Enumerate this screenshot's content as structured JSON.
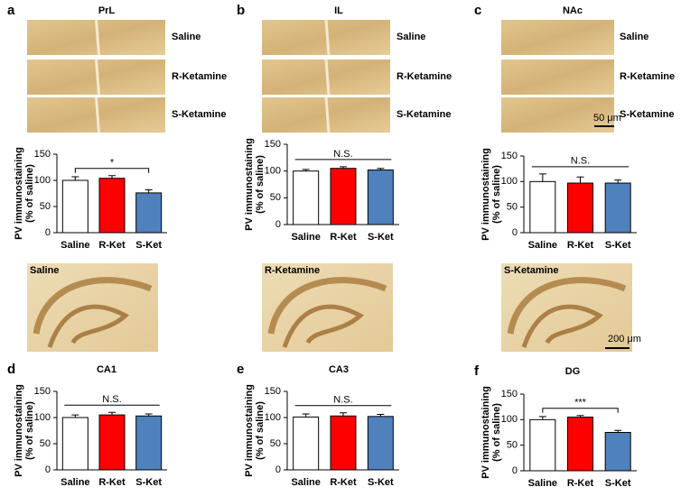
{
  "image_labels": [
    "Saline",
    "R-Ketamine",
    "S-Ketamine"
  ],
  "scale_bars": [
    "50 μm",
    "200 μm"
  ],
  "chart_data": [
    {
      "type": "bar",
      "panel": "a",
      "title": "PrL",
      "ylabel": [
        "PV  immunostaining",
        "(% of saline)"
      ],
      "categories": [
        "Saline",
        "R-Ket",
        "S-Ket"
      ],
      "values": [
        100,
        104,
        76
      ],
      "errors": [
        7,
        5,
        6
      ],
      "colors": [
        "#ffffff",
        "#ff0000",
        "#4f81bd"
      ],
      "significance": "*",
      "ylim": [
        0,
        150
      ],
      "yticks": [
        0,
        50,
        100,
        150
      ]
    },
    {
      "type": "bar",
      "panel": "b",
      "title": "IL",
      "ylabel": [
        "PV  immunostaining",
        "(% of saline)"
      ],
      "categories": [
        "Saline",
        "R-Ket",
        "S-Ket"
      ],
      "values": [
        100,
        105,
        102
      ],
      "errors": [
        3,
        3,
        3
      ],
      "colors": [
        "#ffffff",
        "#ff0000",
        "#4f81bd"
      ],
      "significance": "N.S.",
      "ylim": [
        0,
        150
      ],
      "yticks": [
        0,
        50,
        100,
        150
      ]
    },
    {
      "type": "bar",
      "panel": "c",
      "title": "NAc",
      "ylabel": [
        "PV  immunostaining",
        "(% of saline)"
      ],
      "categories": [
        "Saline",
        "R-Ket",
        "S-Ket"
      ],
      "values": [
        100,
        97,
        97
      ],
      "errors": [
        15,
        12,
        6
      ],
      "colors": [
        "#ffffff",
        "#ff0000",
        "#4f81bd"
      ],
      "significance": "N.S.",
      "ylim": [
        0,
        150
      ],
      "yticks": [
        0,
        50,
        100,
        150
      ]
    },
    {
      "type": "bar",
      "panel": "d",
      "title": "CA1",
      "ylabel": [
        "PV  immunostaining",
        "(% of saline)"
      ],
      "categories": [
        "Saline",
        "R-Ket",
        "S-Ket"
      ],
      "values": [
        100,
        105,
        103
      ],
      "errors": [
        5,
        5,
        4
      ],
      "colors": [
        "#ffffff",
        "#ff0000",
        "#4f81bd"
      ],
      "significance": "N.S.",
      "ylim": [
        0,
        150
      ],
      "yticks": [
        0,
        50,
        100,
        150
      ]
    },
    {
      "type": "bar",
      "panel": "e",
      "title": "CA3",
      "ylabel": [
        "PV  immunostaining",
        "(% of saline)"
      ],
      "categories": [
        "Saline",
        "R-Ket",
        "S-Ket"
      ],
      "values": [
        101,
        103,
        102
      ],
      "errors": [
        6,
        6,
        4
      ],
      "colors": [
        "#ffffff",
        "#ff0000",
        "#4f81bd"
      ],
      "significance": "N.S.",
      "ylim": [
        0,
        150
      ],
      "yticks": [
        0,
        50,
        100,
        150
      ]
    },
    {
      "type": "bar",
      "panel": "f",
      "title": "DG",
      "ylabel": [
        "PV  immunostaining",
        "(% of saline)"
      ],
      "categories": [
        "Saline",
        "R-Ket",
        "S-Ket"
      ],
      "values": [
        100,
        105,
        75
      ],
      "errors": [
        6,
        3,
        4
      ],
      "colors": [
        "#ffffff",
        "#ff0000",
        "#4f81bd"
      ],
      "significance": "***",
      "ylim": [
        0,
        150
      ],
      "yticks": [
        0,
        50,
        100,
        150
      ]
    }
  ]
}
